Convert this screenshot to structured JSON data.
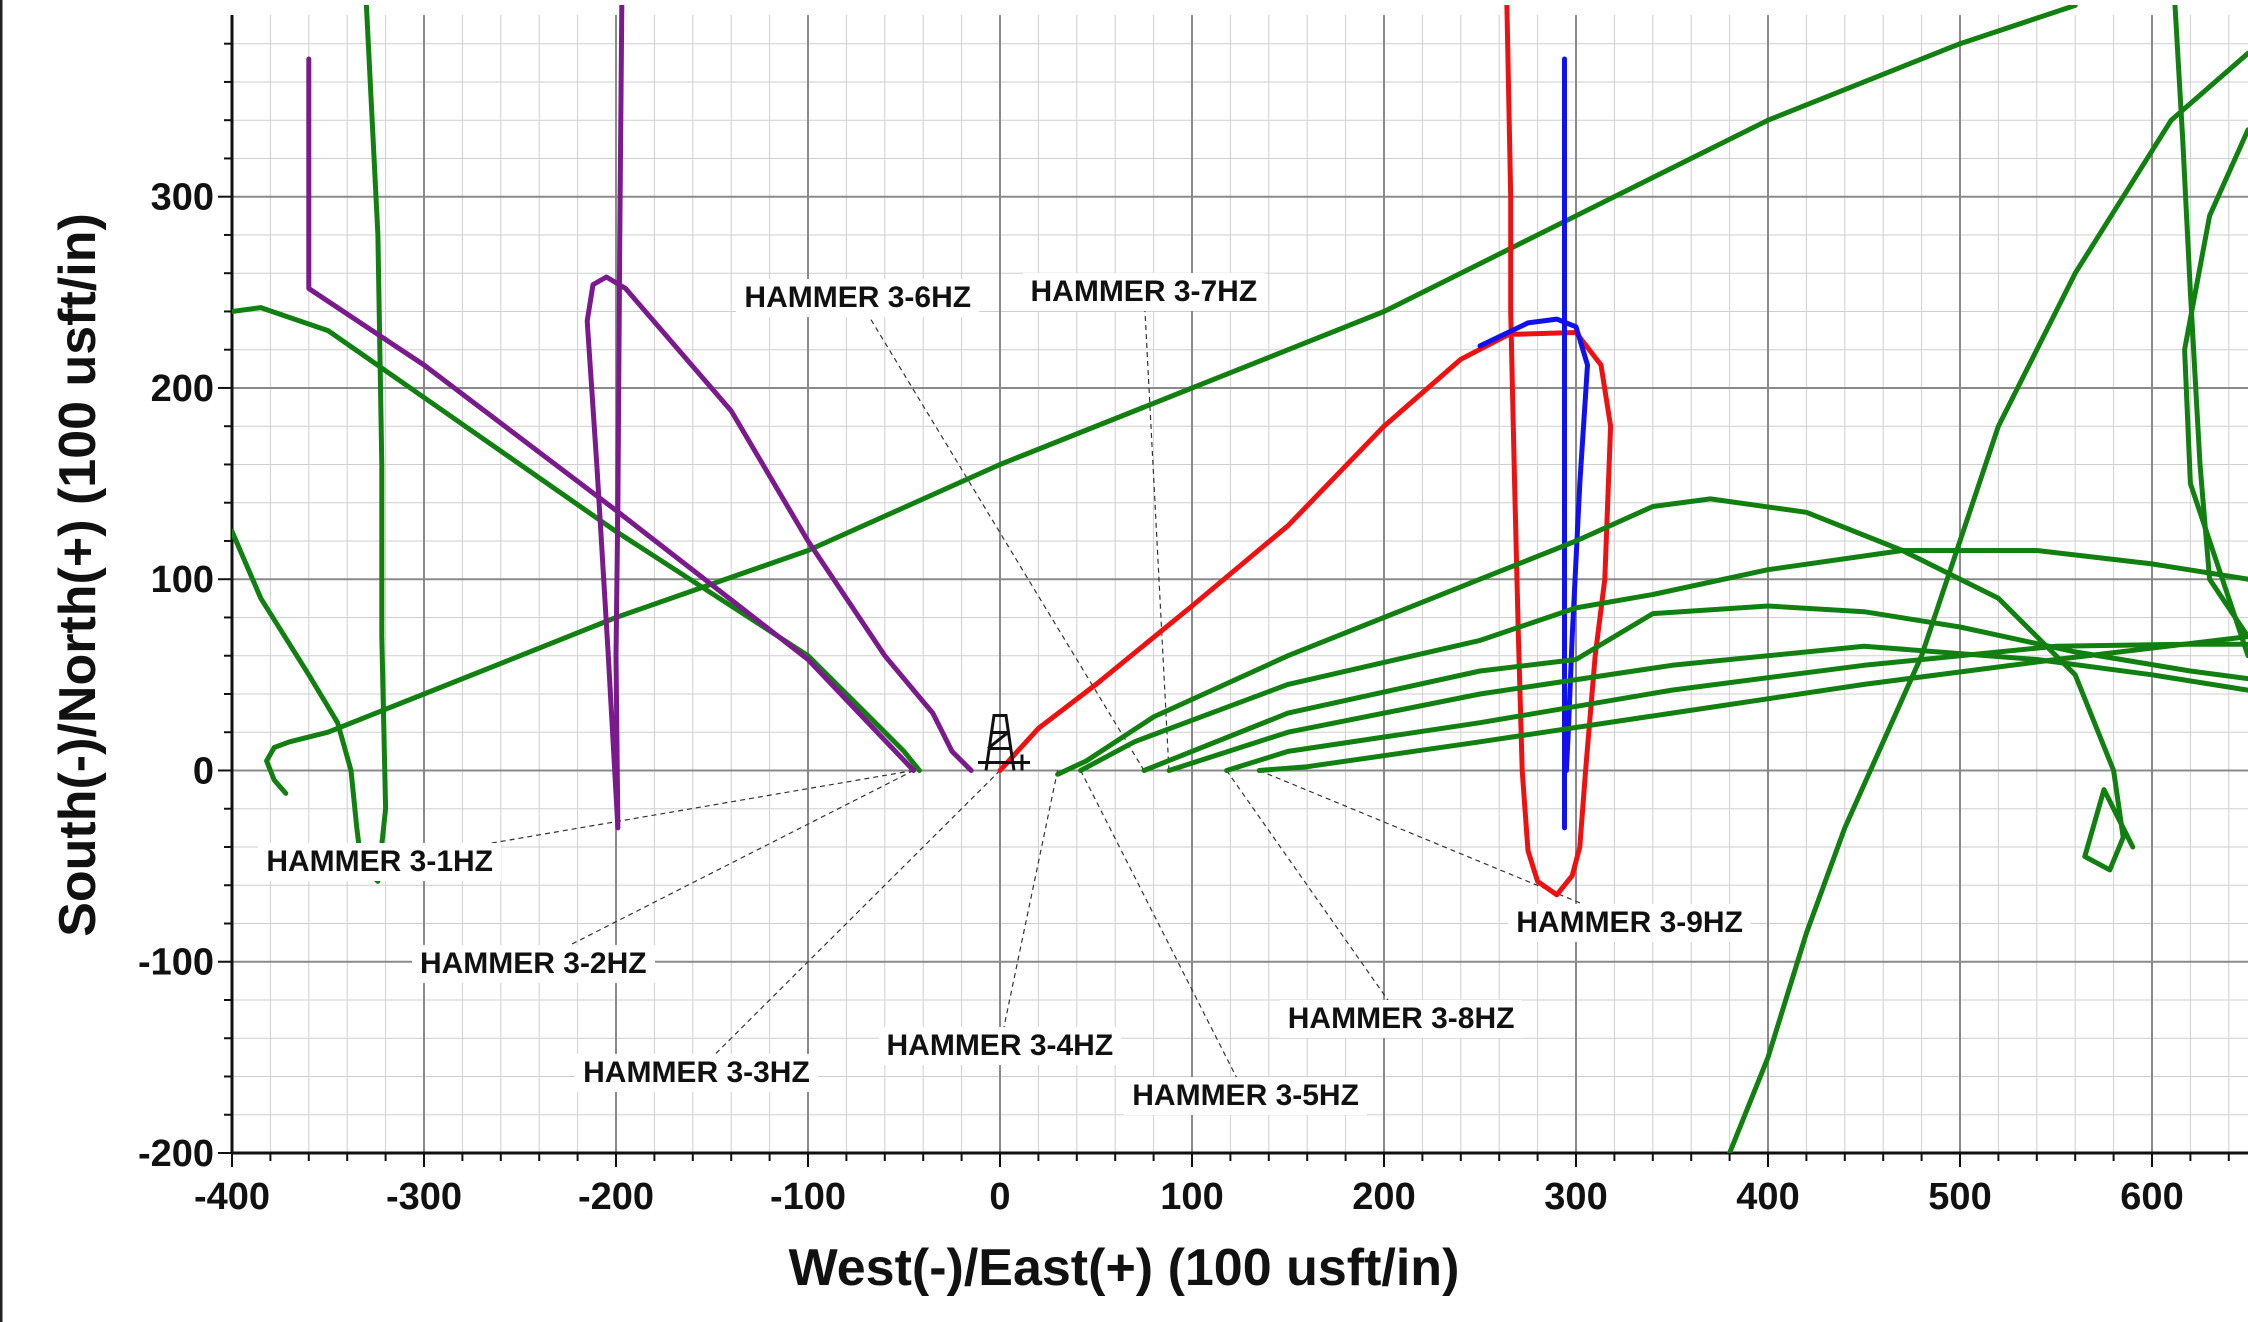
{
  "chart_data": {
    "type": "line",
    "xlabel": "West(-)/East(+) (100 usft/in)",
    "ylabel": "South(-)/North(+) (100 usft/in)",
    "xlim": [
      -400,
      650
    ],
    "ylim": [
      -200,
      395
    ],
    "x_ticks": [
      -400,
      -300,
      -200,
      -100,
      0,
      100,
      200,
      300,
      400,
      500,
      600
    ],
    "y_ticks": [
      -200,
      -100,
      0,
      100,
      200,
      300
    ],
    "minor_grid_step": 20,
    "grid": true,
    "colors": {
      "purple": "#7a1a8c",
      "green": "#118011",
      "red": "#ee1111",
      "blue": "#1111ee",
      "grid_major": "#8a8a8a",
      "grid_minor": "#cfcfcf"
    },
    "series": [
      {
        "color": "#118011",
        "points": [
          [
            -330,
            400
          ],
          [
            -324,
            280
          ],
          [
            -322,
            160
          ],
          [
            -322,
            70
          ],
          [
            -320,
            -20
          ],
          [
            -324,
            -58
          ],
          [
            -330,
            -52
          ]
        ]
      },
      {
        "color": "#118011",
        "points": [
          [
            -400,
            125
          ],
          [
            -385,
            90
          ],
          [
            -360,
            50
          ],
          [
            -345,
            25
          ],
          [
            -338,
            0
          ],
          [
            -335,
            -30
          ],
          [
            -332,
            -55
          ]
        ]
      },
      {
        "color": "#118011",
        "points": [
          [
            -400,
            240
          ],
          [
            -385,
            242
          ],
          [
            -350,
            230
          ],
          [
            -300,
            195
          ],
          [
            -200,
            125
          ],
          [
            -100,
            60
          ],
          [
            -50,
            10
          ],
          [
            -42,
            0
          ]
        ]
      },
      {
        "color": "#118011",
        "points": [
          [
            -372,
            -12
          ],
          [
            -378,
            -5
          ],
          [
            -382,
            5
          ],
          [
            -378,
            12
          ],
          [
            -370,
            15
          ],
          [
            -350,
            20
          ],
          [
            -300,
            40
          ],
          [
            -200,
            80
          ],
          [
            -100,
            115
          ],
          [
            0,
            160
          ],
          [
            100,
            200
          ],
          [
            200,
            240
          ],
          [
            300,
            290
          ],
          [
            400,
            340
          ],
          [
            500,
            380
          ],
          [
            560,
            400
          ]
        ]
      },
      {
        "color": "#7a1a8c",
        "points": [
          [
            -360,
            372
          ],
          [
            -360,
            252
          ],
          [
            -300,
            212
          ],
          [
            -200,
            136
          ],
          [
            -100,
            58
          ],
          [
            -45,
            0
          ]
        ]
      },
      {
        "color": "#7a1a8c",
        "points": [
          [
            -197,
            400
          ],
          [
            -198,
            280
          ],
          [
            -199,
            140
          ],
          [
            -200,
            60
          ],
          [
            -199,
            -30
          ],
          [
            -204,
            60
          ],
          [
            -210,
            160
          ],
          [
            -215,
            235
          ],
          [
            -212,
            254
          ],
          [
            -205,
            258
          ],
          [
            -195,
            252
          ],
          [
            -140,
            188
          ],
          [
            -100,
            120
          ],
          [
            -60,
            60
          ],
          [
            -35,
            30
          ],
          [
            -25,
            10
          ],
          [
            -15,
            0
          ]
        ]
      },
      {
        "color": "#ee1111",
        "points": [
          [
            0,
            0
          ],
          [
            20,
            22
          ],
          [
            50,
            45
          ],
          [
            100,
            86
          ],
          [
            150,
            128
          ],
          [
            200,
            180
          ],
          [
            240,
            215
          ],
          [
            265,
            228
          ],
          [
            300,
            229
          ],
          [
            313,
            212
          ],
          [
            318,
            180
          ],
          [
            315,
            100
          ],
          [
            310,
            60
          ],
          [
            305,
            0
          ],
          [
            302,
            -40
          ],
          [
            298,
            -55
          ],
          [
            290,
            -65
          ],
          [
            280,
            -58
          ],
          [
            275,
            -42
          ],
          [
            272,
            0
          ],
          [
            270,
            70
          ],
          [
            268,
            150
          ],
          [
            266,
            240
          ],
          [
            266,
            300
          ],
          [
            264,
            400
          ]
        ]
      },
      {
        "color": "#1111ee",
        "points": [
          [
            294,
            -30
          ],
          [
            294,
            100
          ],
          [
            294,
            200
          ],
          [
            294,
            230
          ],
          [
            294,
            300
          ],
          [
            294,
            372
          ]
        ]
      },
      {
        "color": "#1111ee",
        "points": [
          [
            250,
            222
          ],
          [
            275,
            234
          ],
          [
            290,
            236
          ],
          [
            300,
            232
          ],
          [
            306,
            212
          ],
          [
            302,
            150
          ],
          [
            298,
            70
          ],
          [
            296,
            20
          ],
          [
            295,
            0
          ]
        ]
      },
      {
        "color": "#118011",
        "points": [
          [
            30,
            -2
          ],
          [
            45,
            5
          ],
          [
            80,
            28
          ],
          [
            150,
            60
          ],
          [
            250,
            100
          ],
          [
            300,
            120
          ],
          [
            340,
            138
          ],
          [
            370,
            142
          ],
          [
            420,
            135
          ],
          [
            470,
            115
          ],
          [
            520,
            90
          ],
          [
            560,
            50
          ],
          [
            580,
            0
          ],
          [
            585,
            -35
          ],
          [
            578,
            -52
          ],
          [
            565,
            -45
          ],
          [
            575,
            -10
          ],
          [
            590,
            -40
          ]
        ]
      },
      {
        "color": "#118011",
        "points": [
          [
            42,
            0
          ],
          [
            70,
            15
          ],
          [
            150,
            45
          ],
          [
            250,
            68
          ],
          [
            300,
            85
          ],
          [
            340,
            92
          ],
          [
            400,
            105
          ],
          [
            470,
            115
          ],
          [
            540,
            115
          ],
          [
            600,
            108
          ],
          [
            650,
            100
          ]
        ]
      },
      {
        "color": "#118011",
        "points": [
          [
            75,
            0
          ],
          [
            150,
            30
          ],
          [
            250,
            52
          ],
          [
            300,
            58
          ],
          [
            340,
            82
          ],
          [
            400,
            86
          ],
          [
            450,
            83
          ],
          [
            500,
            75
          ],
          [
            560,
            62
          ],
          [
            620,
            52
          ],
          [
            650,
            48
          ]
        ]
      },
      {
        "color": "#118011",
        "points": [
          [
            88,
            0
          ],
          [
            150,
            20
          ],
          [
            250,
            40
          ],
          [
            350,
            55
          ],
          [
            450,
            65
          ],
          [
            540,
            58
          ],
          [
            600,
            50
          ],
          [
            650,
            42
          ]
        ]
      },
      {
        "color": "#118011",
        "points": [
          [
            118,
            0
          ],
          [
            150,
            10
          ],
          [
            250,
            25
          ],
          [
            350,
            42
          ],
          [
            450,
            55
          ],
          [
            550,
            65
          ],
          [
            620,
            66
          ],
          [
            650,
            66
          ]
        ]
      },
      {
        "color": "#118011",
        "points": [
          [
            135,
            0
          ],
          [
            160,
            2
          ],
          [
            250,
            15
          ],
          [
            350,
            30
          ],
          [
            450,
            45
          ],
          [
            550,
            58
          ],
          [
            650,
            70
          ]
        ]
      },
      {
        "color": "#118011",
        "points": [
          [
            380,
            -200
          ],
          [
            400,
            -150
          ],
          [
            420,
            -85
          ],
          [
            440,
            -30
          ],
          [
            480,
            60
          ],
          [
            520,
            180
          ],
          [
            560,
            260
          ],
          [
            610,
            340
          ],
          [
            650,
            375
          ]
        ]
      },
      {
        "color": "#118011",
        "points": [
          [
            612,
            400
          ],
          [
            616,
            330
          ],
          [
            620,
            250
          ],
          [
            625,
            160
          ],
          [
            630,
            100
          ],
          [
            650,
            70
          ]
        ]
      },
      {
        "color": "#118011",
        "points": [
          [
            650,
            335
          ],
          [
            630,
            290
          ],
          [
            617,
            220
          ],
          [
            620,
            150
          ],
          [
            640,
            90
          ],
          [
            650,
            60
          ]
        ]
      }
    ],
    "annotations": [
      {
        "text": "HAMMER 3-1HZ",
        "x": -45,
        "y": 0,
        "label_x": -323,
        "label_y": -48
      },
      {
        "text": "HAMMER 3-2HZ",
        "x": -45,
        "y": 0,
        "label_x": -243,
        "label_y": -101
      },
      {
        "text": "HAMMER 3-3HZ",
        "x": 0,
        "y": 0,
        "label_x": -158,
        "label_y": -158
      },
      {
        "text": "HAMMER 3-4HZ",
        "x": 30,
        "y": 0,
        "label_x": 0,
        "label_y": -144
      },
      {
        "text": "HAMMER 3-5HZ",
        "x": 42,
        "y": 0,
        "label_x": 128,
        "label_y": -170
      },
      {
        "text": "HAMMER 3-6HZ",
        "x": 75,
        "y": 0,
        "label_x": -74,
        "label_y": 247
      },
      {
        "text": "HAMMER 3-7HZ",
        "x": 88,
        "y": 0,
        "label_x": 75,
        "label_y": 250
      },
      {
        "text": "HAMMER 3-8HZ",
        "x": 118,
        "y": 0,
        "label_x": 209,
        "label_y": -130
      },
      {
        "text": "HAMMER 3-9HZ",
        "x": 135,
        "y": 0,
        "label_x": 328,
        "label_y": -80
      }
    ]
  }
}
